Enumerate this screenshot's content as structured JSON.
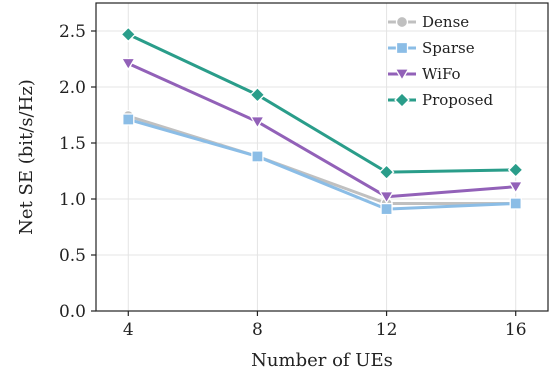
{
  "chart_data": {
    "type": "line",
    "xlabel": "Number of UEs",
    "ylabel": "Net SE (bit/s/Hz)",
    "x": [
      4,
      8,
      12,
      16
    ],
    "xticks": [
      "4",
      "8",
      "12",
      "16"
    ],
    "xlim": [
      3,
      17
    ],
    "ylim": [
      0,
      2.75
    ],
    "yticks": [
      "0.0",
      "0.5",
      "1.0",
      "1.5",
      "2.0",
      "2.5"
    ],
    "grid": true,
    "legend_position": "top-right",
    "series": [
      {
        "name": "Dense",
        "values": [
          1.74,
          1.38,
          0.96,
          0.96
        ],
        "color": "#c0c0c0",
        "marker": "circle"
      },
      {
        "name": "Sparse",
        "values": [
          1.71,
          1.38,
          0.91,
          0.96
        ],
        "color": "#8bbde6",
        "marker": "square"
      },
      {
        "name": "WiFo",
        "values": [
          2.21,
          1.69,
          1.02,
          1.11
        ],
        "color": "#9261b8",
        "marker": "triangle-down"
      },
      {
        "name": "Proposed",
        "values": [
          2.47,
          1.93,
          1.24,
          1.26
        ],
        "color": "#2a9d8a",
        "marker": "diamond"
      }
    ]
  }
}
